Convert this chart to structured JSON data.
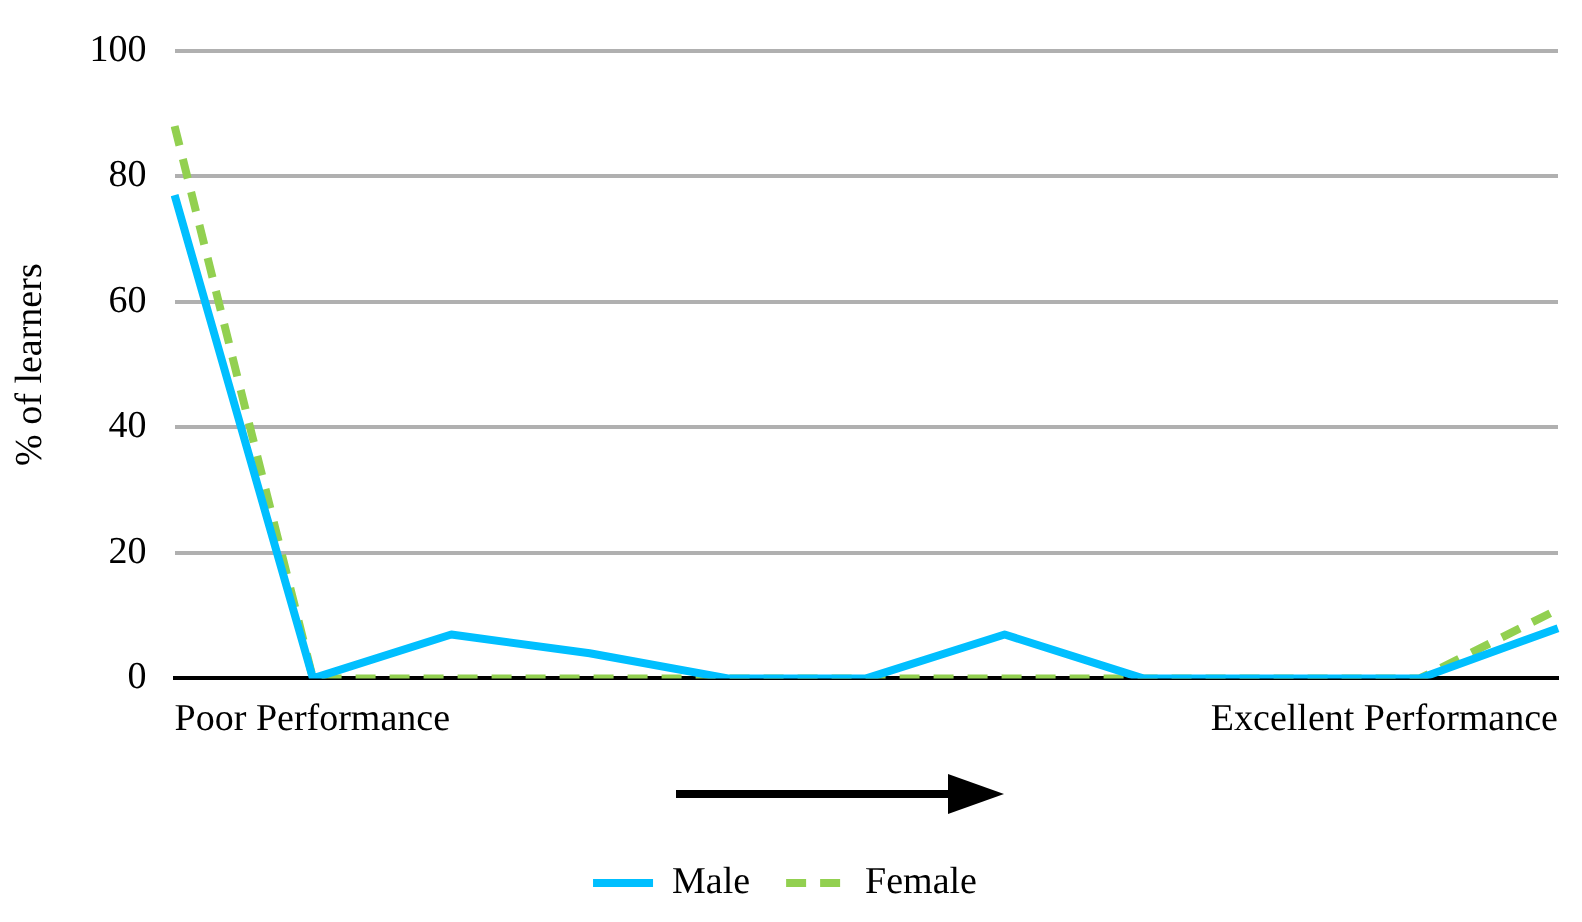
{
  "chart_data": {
    "type": "line",
    "ylabel": "% of learners",
    "categories": [
      null,
      null,
      null,
      null,
      null,
      null,
      null,
      null,
      null,
      null,
      null
    ],
    "annotations": [
      "Poor Performance",
      "Excellent Performance"
    ],
    "series": [
      {
        "name": "Male",
        "color": "#00bfff",
        "values": [
          77,
          0,
          7,
          4,
          0,
          0,
          7,
          0,
          0,
          0,
          8
        ]
      },
      {
        "name": "Female",
        "color": "#92d050",
        "line_style": "dashed",
        "values": [
          88,
          0,
          0,
          0,
          0,
          0,
          0,
          0,
          0,
          0,
          11
        ]
      }
    ],
    "ylim": [
      0,
      100
    ],
    "yticks": [
      0,
      20,
      40,
      60,
      80,
      100
    ],
    "grid": "y",
    "legend": "bottom",
    "marker": "none"
  }
}
